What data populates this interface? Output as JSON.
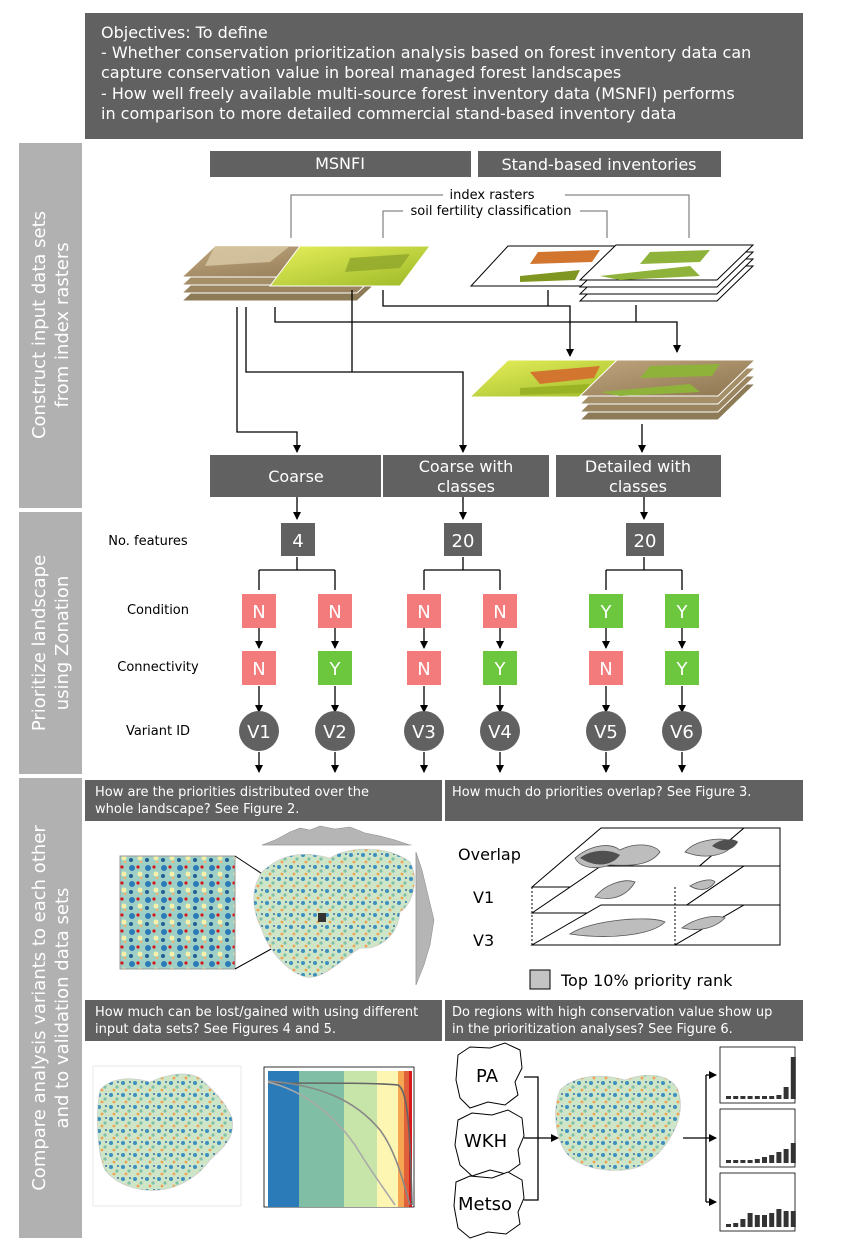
{
  "objectives": {
    "line1": "Objectives: To define",
    "line2": "- Whether conservation prioritization analysis based on forest inventory data can",
    "line3": "capture conservation value in boreal managed forest landscapes",
    "line4": "- How well freely available multi-source forest inventory data (MSNFI) performs",
    "line5": "in comparison to more detailed commercial stand-based inventory data"
  },
  "sections": {
    "construct": {
      "line1": "Construct input data sets",
      "line2": "from index rasters"
    },
    "prioritize": {
      "line1": "Prioritize landscape",
      "line2": "using Zonation"
    },
    "compare": {
      "line1": "Compare analysis variants to each other",
      "line2": "and to validation data sets"
    }
  },
  "sources": {
    "msnfi": "MSNFI",
    "stand": "Stand-based inventories"
  },
  "rasters": {
    "index": "index rasters",
    "soil": "soil fertility classification"
  },
  "datasets": {
    "coarse": "Coarse",
    "coarse_classes": {
      "line1": "Coarse with",
      "line2": "classes"
    },
    "detailed_classes": {
      "line1": "Detailed with",
      "line2": "classes"
    }
  },
  "row_labels": {
    "features": "No. features",
    "condition": "Condition",
    "connectivity": "Connectivity",
    "variant": "Variant ID"
  },
  "features": [
    "4",
    "20",
    "20"
  ],
  "condition": [
    "N",
    "N",
    "N",
    "N",
    "Y",
    "Y"
  ],
  "connectivity": [
    "N",
    "Y",
    "N",
    "Y",
    "N",
    "Y"
  ],
  "variants": [
    "V1",
    "V2",
    "V3",
    "V4",
    "V5",
    "V6"
  ],
  "questions": {
    "q1": {
      "line1": "How are the priorities distributed over the",
      "line2": "whole landscape? See Figure 2."
    },
    "q2": {
      "line1": "How much do priorities overlap? See Figure 3."
    },
    "q3": {
      "line1": "How much can be lost/gained with using different",
      "line2": "input data sets? See Figures 4 and 5."
    },
    "q4": {
      "line1": "Do regions with high conservation value show up",
      "line2": "in the prioritization analyses? See Figure 6."
    }
  },
  "overlap_labels": {
    "overlap": "Overlap",
    "v1": "V1",
    "v3": "V3",
    "legend": "Top 10% priority rank"
  },
  "validation_labels": {
    "pa": "PA",
    "wkh": "WKH",
    "metso": "Metso"
  },
  "colors": {
    "box_dark": "#616161",
    "side_band": "#b1b1b1",
    "no_red": "#f47b7b",
    "yes_green": "#6cc73e",
    "curve_blues": "#2b7bb9",
    "curve_teal": "#80bfa6",
    "curve_lightgreen": "#c7e5a8",
    "curve_yellow": "#fdf6b2",
    "curve_orange": "#f4a653",
    "curve_red": "#d7191c"
  }
}
